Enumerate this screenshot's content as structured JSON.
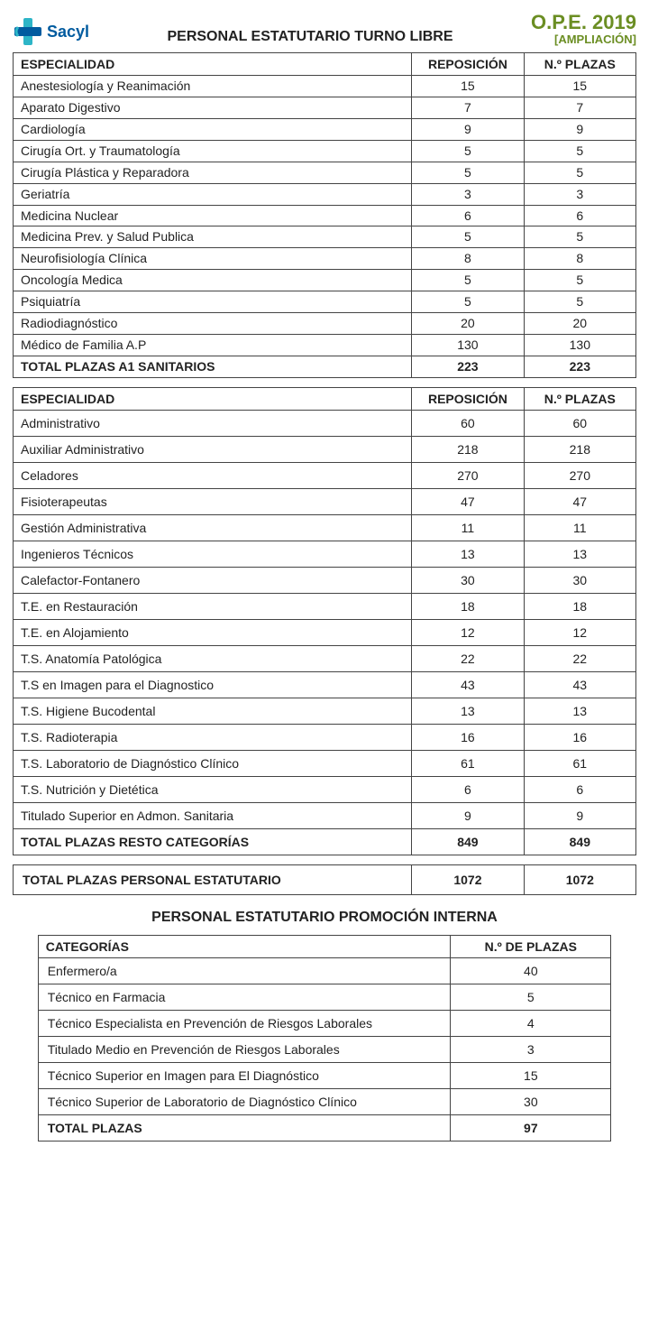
{
  "header": {
    "logo_text": "Sacyl",
    "title_center": "PERSONAL ESTATUTARIO TURNO LIBRE",
    "title_right_1": "O.P.E. 2019",
    "title_right_2": "[AMPLIACIÓN]"
  },
  "colors": {
    "brand_blue": "#005b9f",
    "brand_cyan": "#2db5c7",
    "accent_green": "#6b8e23",
    "border": "#444444",
    "text": "#222222",
    "background": "#ffffff"
  },
  "table1": {
    "headers": {
      "col1": "ESPECIALIDAD",
      "col2": "REPOSICIÓN",
      "col3": "N.º PLAZAS"
    },
    "rows": [
      {
        "esp": "Anestesiología y Reanimación",
        "rep": "15",
        "np": "15"
      },
      {
        "esp": "Aparato Digestivo",
        "rep": "7",
        "np": "7"
      },
      {
        "esp": "Cardiología",
        "rep": "9",
        "np": "9"
      },
      {
        "esp": "Cirugía Ort. y Traumatología",
        "rep": "5",
        "np": "5"
      },
      {
        "esp": "Cirugía Plástica y Reparadora",
        "rep": "5",
        "np": "5"
      },
      {
        "esp": "Geriatría",
        "rep": "3",
        "np": "3"
      },
      {
        "esp": "Medicina Nuclear",
        "rep": "6",
        "np": "6"
      },
      {
        "esp": "Medicina Prev. y Salud Publica",
        "rep": "5",
        "np": "5"
      },
      {
        "esp": "Neurofisiología Clínica",
        "rep": "8",
        "np": "8"
      },
      {
        "esp": "Oncología Medica",
        "rep": "5",
        "np": "5"
      },
      {
        "esp": "Psiquiatría",
        "rep": "5",
        "np": "5"
      },
      {
        "esp": "Radiodiagnóstico",
        "rep": "20",
        "np": "20"
      },
      {
        "esp": "Médico de Familia A.P",
        "rep": "130",
        "np": "130"
      }
    ],
    "total": {
      "label": "TOTAL PLAZAS A1 SANITARIOS",
      "rep": "223",
      "np": "223"
    }
  },
  "table2": {
    "headers": {
      "col1": "ESPECIALIDAD",
      "col2": "REPOSICIÓN",
      "col3": "N.º PLAZAS"
    },
    "rows": [
      {
        "esp": "Administrativo",
        "rep": "60",
        "np": "60"
      },
      {
        "esp": "Auxiliar Administrativo",
        "rep": "218",
        "np": "218"
      },
      {
        "esp": "Celadores",
        "rep": "270",
        "np": "270"
      },
      {
        "esp": "Fisioterapeutas",
        "rep": "47",
        "np": "47"
      },
      {
        "esp": "Gestión Administrativa",
        "rep": "11",
        "np": "11"
      },
      {
        "esp": "Ingenieros Técnicos",
        "rep": "13",
        "np": "13"
      },
      {
        "esp": "Calefactor-Fontanero",
        "rep": "30",
        "np": "30"
      },
      {
        "esp": "T.E. en Restauración",
        "rep": "18",
        "np": "18"
      },
      {
        "esp": "T.E. en Alojamiento",
        "rep": "12",
        "np": "12"
      },
      {
        "esp": "T.S. Anatomía Patológica",
        "rep": "22",
        "np": "22"
      },
      {
        "esp": "T.S en Imagen para el Diagnostico",
        "rep": "43",
        "np": "43"
      },
      {
        "esp": "T.S. Higiene Bucodental",
        "rep": "13",
        "np": "13"
      },
      {
        "esp": "T.S. Radioterapia",
        "rep": "16",
        "np": "16"
      },
      {
        "esp": "T.S. Laboratorio de Diagnóstico Clínico",
        "rep": "61",
        "np": "61"
      },
      {
        "esp": "T.S. Nutrición y Dietética",
        "rep": "6",
        "np": "6"
      },
      {
        "esp": "Titulado Superior en Admon. Sanitaria",
        "rep": "9",
        "np": "9"
      }
    ],
    "total": {
      "label": "TOTAL PLAZAS RESTO CATEGORÍAS",
      "rep": "849",
      "np": "849"
    }
  },
  "grand_total": {
    "label": "TOTAL PLAZAS PERSONAL ESTATUTARIO",
    "rep": "1072",
    "np": "1072"
  },
  "section2_title": "PERSONAL ESTATUTARIO PROMOCIÓN INTERNA",
  "table3": {
    "headers": {
      "col1": "CATEGORÍAS",
      "col2": "N.º DE PLAZAS"
    },
    "rows": [
      {
        "cat": "Enfermero/a",
        "np": "40"
      },
      {
        "cat": "Técnico en Farmacia",
        "np": "5"
      },
      {
        "cat": "Técnico Especialista en Prevención de Riesgos Laborales",
        "np": "4"
      },
      {
        "cat": "Titulado Medio en Prevención de Riesgos Laborales",
        "np": "3"
      },
      {
        "cat": "Técnico Superior en Imagen para El Diagnóstico",
        "np": "15"
      },
      {
        "cat": "Técnico Superior de Laboratorio de Diagnóstico Clínico",
        "np": "30"
      }
    ],
    "total": {
      "label": "TOTAL PLAZAS",
      "np": "97"
    }
  }
}
